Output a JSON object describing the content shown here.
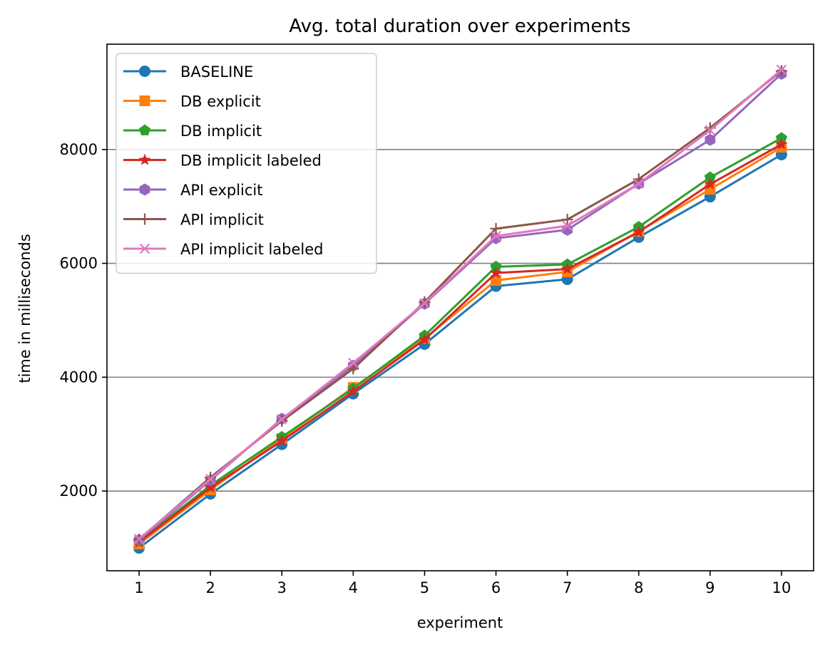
{
  "chart_data": {
    "type": "line",
    "title": "Avg. total duration over experiments",
    "xlabel": "experiment",
    "ylabel": "time in milliseconds",
    "x": [
      1,
      2,
      3,
      4,
      5,
      6,
      7,
      8,
      9,
      10
    ],
    "xlim": [
      0.55,
      10.45
    ],
    "ylim": [
      600,
      9850
    ],
    "yticks": [
      2000,
      4000,
      6000,
      8000
    ],
    "grid": "horizontal",
    "legend_position": "top-left",
    "series": [
      {
        "name": "BASELINE",
        "color": "#1f77b4",
        "marker": "circle",
        "values": [
          1000,
          1950,
          2820,
          3710,
          4580,
          5600,
          5720,
          6460,
          7170,
          7910
        ]
      },
      {
        "name": "DB explicit",
        "color": "#ff7f0e",
        "marker": "square",
        "values": [
          1070,
          2020,
          2920,
          3820,
          4680,
          5700,
          5850,
          6560,
          7300,
          8040
        ]
      },
      {
        "name": "DB implicit",
        "color": "#2ca02c",
        "marker": "pentagon",
        "values": [
          1120,
          2100,
          2950,
          3800,
          4730,
          5940,
          5980,
          6640,
          7510,
          8200
        ]
      },
      {
        "name": "DB implicit labeled",
        "color": "#d62728",
        "marker": "star",
        "values": [
          1100,
          2060,
          2880,
          3750,
          4660,
          5830,
          5900,
          6550,
          7390,
          8090
        ]
      },
      {
        "name": "API explicit",
        "color": "#9467bd",
        "marker": "hexagon",
        "values": [
          1140,
          2190,
          3270,
          4200,
          5290,
          6440,
          6590,
          7400,
          8170,
          9330
        ]
      },
      {
        "name": "API implicit",
        "color": "#8c564b",
        "marker": "plus",
        "values": [
          1150,
          2240,
          3230,
          4150,
          5320,
          6610,
          6770,
          7480,
          8380,
          9380
        ]
      },
      {
        "name": "API implicit labeled",
        "color": "#e377c2",
        "marker": "x",
        "values": [
          1160,
          2210,
          3260,
          4250,
          5300,
          6480,
          6660,
          7400,
          8340,
          9400
        ]
      }
    ]
  }
}
